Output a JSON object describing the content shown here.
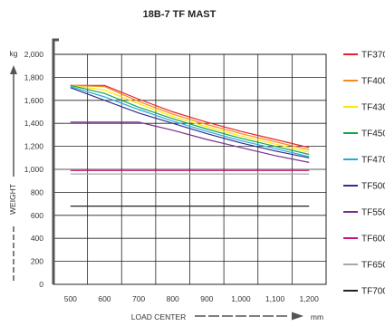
{
  "chart_data": {
    "type": "line",
    "title": "18B-7 TF MAST",
    "xlabel": "LOAD CENTER",
    "x_unit": "mm",
    "ylabel": "WEIGHT",
    "y_unit": "kg",
    "xlim": [
      450,
      1250
    ],
    "ylim": [
      0,
      2000
    ],
    "x_ticks": [
      "500",
      "600",
      "700",
      "800",
      "900",
      "1,000",
      "1,100",
      "1,200"
    ],
    "y_ticks": [
      "0",
      "200",
      "400",
      "600",
      "800",
      "1,000",
      "1,200",
      "1,400",
      "1,600",
      "1,800",
      "2,000"
    ],
    "grid": true,
    "legend_position": "right",
    "series": [
      {
        "name": "TF370",
        "color": "#e8202a",
        "x": [
          500,
          600,
          700,
          800,
          900,
          1000,
          1100,
          1200
        ],
        "y": [
          1730,
          1730,
          1610,
          1500,
          1410,
          1330,
          1260,
          1190
        ]
      },
      {
        "name": "TF400",
        "color": "#f58a1f",
        "x": [
          500,
          600,
          700,
          800,
          900,
          1000,
          1100,
          1200
        ],
        "y": [
          1730,
          1720,
          1590,
          1480,
          1390,
          1310,
          1240,
          1170
        ]
      },
      {
        "name": "TF430",
        "color": "#ffe600",
        "x": [
          500,
          600,
          700,
          800,
          900,
          1000,
          1100,
          1200
        ],
        "y": [
          1730,
          1690,
          1570,
          1460,
          1370,
          1290,
          1220,
          1150
        ]
      },
      {
        "name": "TF450",
        "color": "#16a34a",
        "x": [
          500,
          600,
          700,
          800,
          900,
          1000,
          1100,
          1200
        ],
        "y": [
          1730,
          1660,
          1540,
          1440,
          1350,
          1270,
          1200,
          1130
        ]
      },
      {
        "name": "TF470",
        "color": "#29a8e0",
        "x": [
          500,
          600,
          700,
          800,
          900,
          1000,
          1100,
          1200
        ],
        "y": [
          1720,
          1630,
          1520,
          1420,
          1330,
          1250,
          1180,
          1110
        ]
      },
      {
        "name": "TF500",
        "color": "#2e3192",
        "x": [
          500,
          600,
          700,
          800,
          900,
          1000,
          1100,
          1200
        ],
        "y": [
          1710,
          1600,
          1490,
          1400,
          1310,
          1230,
          1160,
          1100
        ]
      },
      {
        "name": "TF550",
        "color": "#7b2d8e",
        "x": [
          500,
          600,
          700,
          800,
          900,
          1000,
          1100,
          1200
        ],
        "y": [
          1410,
          1410,
          1410,
          1340,
          1260,
          1190,
          1120,
          1060
        ]
      },
      {
        "name": "TF600",
        "color": "#c8146e",
        "x": [
          500,
          1200
        ],
        "y": [
          990,
          990
        ]
      },
      {
        "name": "TF650",
        "color": "#a8a8a8",
        "x": [
          500,
          1200
        ],
        "y": [
          960,
          960
        ]
      },
      {
        "name": "TF700",
        "color": "#222222",
        "x": [
          500,
          1200
        ],
        "y": [
          680,
          680
        ]
      }
    ]
  }
}
